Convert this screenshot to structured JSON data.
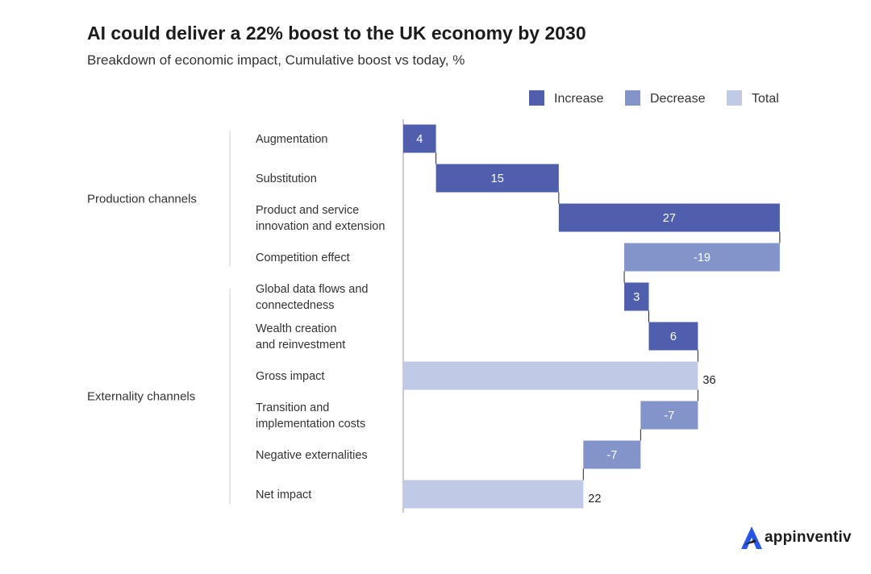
{
  "chart_data": {
    "type": "waterfall",
    "title": "AI could deliver a 22% boost to the UK economy by 2030",
    "subtitle": "Breakdown of economic impact, Cumulative boost vs today, %",
    "legend": [
      {
        "name": "Increase",
        "color": "#4f5fad"
      },
      {
        "name": "Decrease",
        "color": "#8394cb"
      },
      {
        "name": "Total",
        "color": "#c0cae6"
      }
    ],
    "legend_position": "top-right",
    "groups": [
      {
        "label": "Production channels",
        "first": 0,
        "last": 3
      },
      {
        "label": "Externality channels",
        "first": 4,
        "last": 9
      }
    ],
    "categories": [
      {
        "lines": [
          "Augmentation"
        ],
        "value": 4,
        "kind": "Increase",
        "display": "4"
      },
      {
        "lines": [
          "Substitution"
        ],
        "value": 15,
        "kind": "Increase",
        "display": "15"
      },
      {
        "lines": [
          "Product and service",
          "innovation and extension"
        ],
        "value": 27,
        "kind": "Increase",
        "display": "27"
      },
      {
        "lines": [
          "Competition effect"
        ],
        "value": -19,
        "kind": "Decrease",
        "display": "-19"
      },
      {
        "lines": [
          "Global data  flows and",
          "connectedness"
        ],
        "value": 3,
        "kind": "Increase",
        "display": "3"
      },
      {
        "lines": [
          "Wealth creation",
          "and reinvestment"
        ],
        "value": 6,
        "kind": "Increase",
        "display": "6"
      },
      {
        "lines": [
          "Gross impact"
        ],
        "value": 36,
        "kind": "Total",
        "display": "36"
      },
      {
        "lines": [
          "Transition and",
          "implementation costs"
        ],
        "value": -7,
        "kind": "Decrease",
        "display": "-7"
      },
      {
        "lines": [
          "Negative externalities"
        ],
        "value": -7,
        "kind": "Decrease",
        "display": "-7"
      },
      {
        "lines": [
          "Net impact"
        ],
        "value": 22,
        "kind": "Total",
        "display": "22"
      }
    ],
    "xlim": [
      0,
      46
    ]
  },
  "brand": {
    "logo_text": "appinventiv",
    "logo_icon": "appinventiv-a-icon",
    "color": "#2757e8"
  }
}
